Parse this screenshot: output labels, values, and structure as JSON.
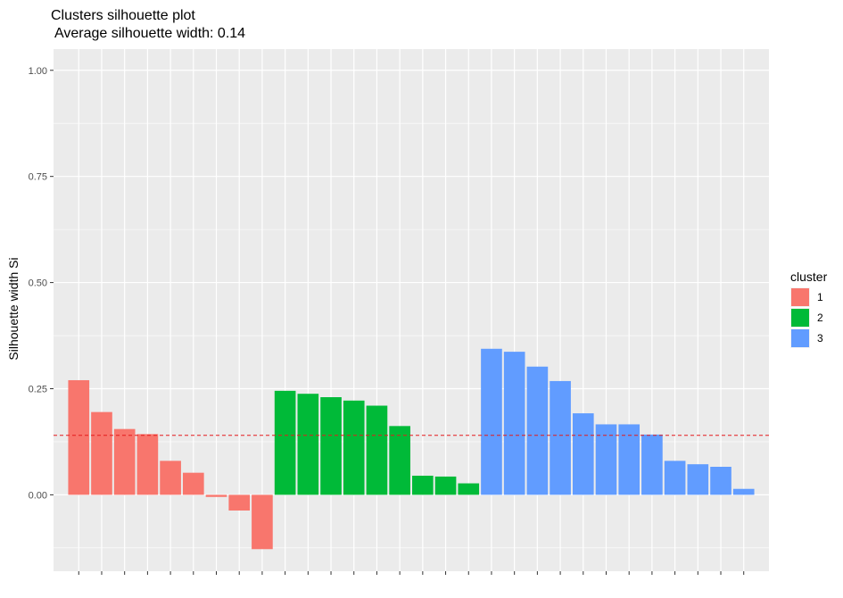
{
  "chart_data": {
    "type": "bar",
    "title": "Clusters silhouette plot",
    "subtitle": "Average silhouette width: 0.14",
    "xlabel": "",
    "ylabel": "Silhouette width Si",
    "ylim": [
      -0.18,
      1.05
    ],
    "yticks": [
      0.0,
      0.25,
      0.5,
      0.75,
      1.0
    ],
    "ytick_labels": [
      "0.00",
      "0.25",
      "0.50",
      "0.75",
      "1.00"
    ],
    "grid": true,
    "legend": {
      "title": "cluster",
      "position": "right",
      "entries": [
        {
          "label": "1",
          "color": "#F8766D"
        },
        {
          "label": "2",
          "color": "#00BA38"
        },
        {
          "label": "3",
          "color": "#619CFF"
        }
      ]
    },
    "reference_line": {
      "value": 0.14,
      "style": "dashed",
      "color": "#E41A1C"
    },
    "series": [
      {
        "cluster": "1",
        "color": "#F8766D",
        "values": [
          0.27,
          0.195,
          0.155,
          0.143,
          0.08,
          0.052,
          -0.005,
          -0.037,
          -0.128
        ]
      },
      {
        "cluster": "2",
        "color": "#00BA38",
        "values": [
          0.245,
          0.238,
          0.23,
          0.222,
          0.21,
          0.162,
          0.045,
          0.043,
          0.027
        ]
      },
      {
        "cluster": "3",
        "color": "#619CFF",
        "values": [
          0.344,
          0.337,
          0.302,
          0.268,
          0.192,
          0.166,
          0.166,
          0.142,
          0.08,
          0.072,
          0.066,
          0.014
        ]
      }
    ]
  }
}
